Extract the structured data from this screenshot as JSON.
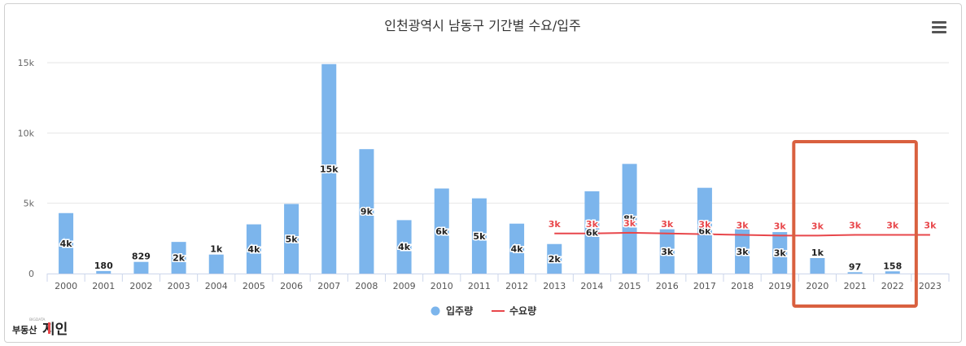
{
  "chart_data": {
    "type": "bar",
    "title": "인천광역시 남동구 기간별 수요/입주",
    "categories": [
      "2000",
      "2001",
      "2002",
      "2003",
      "2004",
      "2005",
      "2006",
      "2007",
      "2008",
      "2009",
      "2010",
      "2011",
      "2012",
      "2013",
      "2014",
      "2015",
      "2016",
      "2017",
      "2018",
      "2019",
      "2020",
      "2021",
      "2022",
      "2023"
    ],
    "ylim": [
      0,
      15000
    ],
    "yticks": [
      {
        "value": 0,
        "label": "0"
      },
      {
        "value": 5000,
        "label": "5k"
      },
      {
        "value": 10000,
        "label": "10k"
      },
      {
        "value": 15000,
        "label": "15k"
      }
    ],
    "grid": true,
    "legend_position": "bottom",
    "series": [
      {
        "name": "입주량",
        "type": "bar",
        "color": "#7cb5ec",
        "values": [
          4300,
          180,
          829,
          2250,
          1350,
          3500,
          4950,
          14900,
          8850,
          3800,
          6050,
          5350,
          3550,
          2100,
          5850,
          7800,
          3150,
          6100,
          3150,
          2950,
          1100,
          97,
          158,
          null
        ],
        "labels": [
          "4k",
          "180",
          "829",
          "2k",
          "1k",
          "4k",
          "5k",
          "15k",
          "9k",
          "4k",
          "6k",
          "5k",
          "4k",
          "2k",
          "6k",
          "8k",
          "3k",
          "6k",
          "3k",
          "3k",
          "1k",
          "97",
          "158",
          ""
        ]
      },
      {
        "name": "수요량",
        "type": "line",
        "color": "#e8474b",
        "values": [
          null,
          null,
          null,
          null,
          null,
          null,
          null,
          null,
          null,
          null,
          null,
          null,
          null,
          2850,
          2850,
          2900,
          2850,
          2800,
          2750,
          2700,
          2700,
          2750,
          2750,
          2750
        ],
        "labels": [
          "",
          "",
          "",
          "",
          "",
          "",
          "",
          "",
          "",
          "",
          "",
          "",
          "",
          "3k",
          "3k",
          "3k",
          "3k",
          "3k",
          "3k",
          "3k",
          "3k",
          "3k",
          "3k",
          "3k"
        ]
      }
    ],
    "highlight": {
      "from": "2020",
      "to": "2022",
      "color": "#d9603f"
    }
  },
  "toolbar": {
    "menu_icon": "hamburger-menu-icon"
  },
  "brand": {
    "text_small": "부동산",
    "text_large": "지인",
    "tagline": "BIGDATA"
  }
}
